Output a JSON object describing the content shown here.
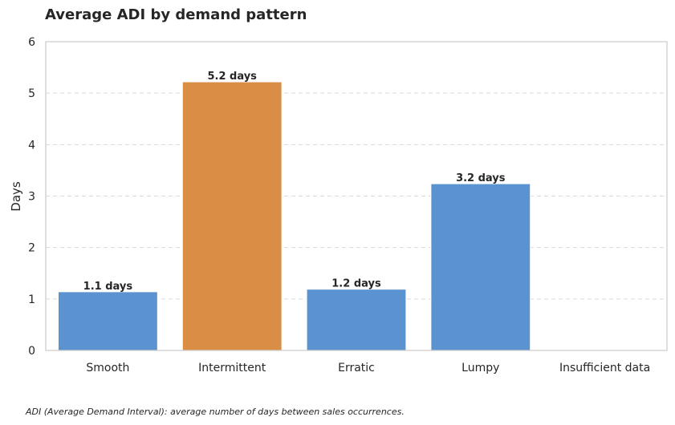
{
  "chart_data": {
    "type": "bar",
    "title": "Average ADI by demand pattern",
    "xlabel": "",
    "ylabel": "Days",
    "ylim": [
      0,
      6
    ],
    "yticks": [
      "0",
      "1",
      "2",
      "3",
      "4",
      "5",
      "6"
    ],
    "categories": [
      "Smooth",
      "Intermittent",
      "Erratic",
      "Lumpy",
      "Insufficient data"
    ],
    "values": [
      1.14,
      5.22,
      1.19,
      3.24,
      null
    ],
    "data_labels": [
      "1.1 days",
      "5.2 days",
      "1.2 days",
      "3.2 days",
      ""
    ],
    "bar_colors": [
      "#5b93d1",
      "#da8e45",
      "#5b93d1",
      "#5b93d1",
      "#5b93d1"
    ],
    "grid": "y dashed",
    "footnote": "ADI (Average Demand Interval): average number of days between sales occurrences."
  }
}
